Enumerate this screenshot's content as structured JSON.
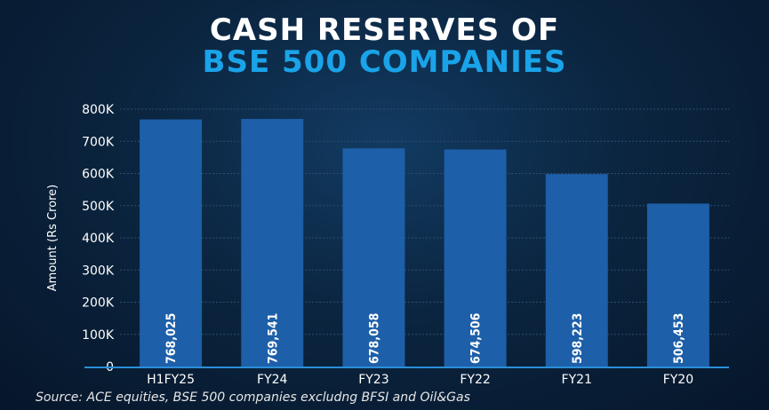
{
  "colors": {
    "bar": "#1d5fa8",
    "grid": "#2f4d6e",
    "axis": "#2a8fd8",
    "text": "#ffffff",
    "title_white": "#ffffff",
    "title_blue": "#1aa3e8"
  },
  "chart_data": {
    "type": "bar",
    "title": "CASH RESERVES OF",
    "subtitle": "BSE 500 COMPANIES",
    "xlabel": "",
    "ylabel": "Amount (Rs Crore)",
    "categories": [
      "H1FY25",
      "FY24",
      "FY23",
      "FY22",
      "FY21",
      "FY20"
    ],
    "values": [
      768025,
      769541,
      678058,
      674506,
      598223,
      506453
    ],
    "data_labels": [
      "768,025",
      "769,541",
      "678,058",
      "674,506",
      "598,223",
      "506,453"
    ],
    "ylim": [
      0,
      800000
    ],
    "yticks": [
      0,
      100000,
      200000,
      300000,
      400000,
      500000,
      600000,
      700000,
      800000
    ],
    "ytick_labels": [
      "0",
      "100K",
      "200K",
      "300K",
      "400K",
      "500K",
      "600K",
      "700K",
      "800K"
    ],
    "grid": true,
    "source": "Source: ACE equities, BSE 500 companies excludng BFSI and Oil&Gas"
  }
}
